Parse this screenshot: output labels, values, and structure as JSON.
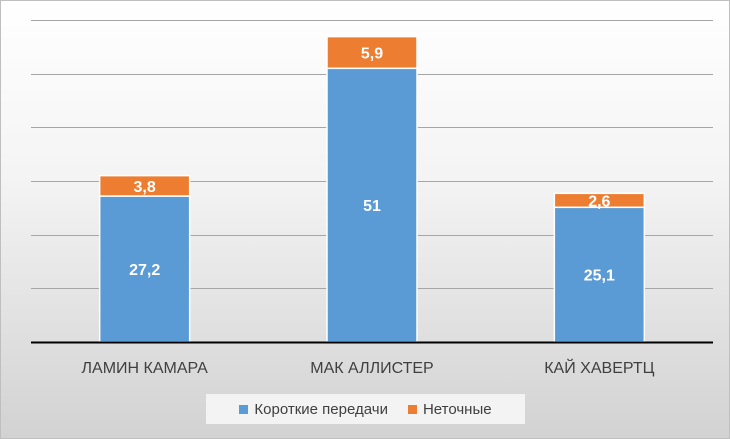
{
  "chart_data": {
    "type": "bar",
    "stacked": true,
    "categories": [
      "ЛАМИН КАМАРА",
      "МАК АЛЛИСТЕР",
      "КАЙ ХАВЕРТЦ"
    ],
    "series": [
      {
        "name": "Короткие передачи",
        "values": [
          27.2,
          51,
          25.1
        ],
        "labels": [
          "27,2",
          "51",
          "25,1"
        ],
        "color": "#5b9bd5"
      },
      {
        "name": "Неточные",
        "values": [
          3.8,
          5.9,
          2.6
        ],
        "labels": [
          "3,8",
          "5,9",
          "2,6"
        ],
        "color": "#ed7d31"
      }
    ],
    "ylim": [
      0,
      60
    ],
    "grid": true,
    "y_axis_labels_visible": false,
    "legend_position": "bottom",
    "colors": {
      "label_text": "#ffffff",
      "axis": "#000000",
      "grid": "#a6a6a6",
      "category_text": "#404040"
    }
  }
}
